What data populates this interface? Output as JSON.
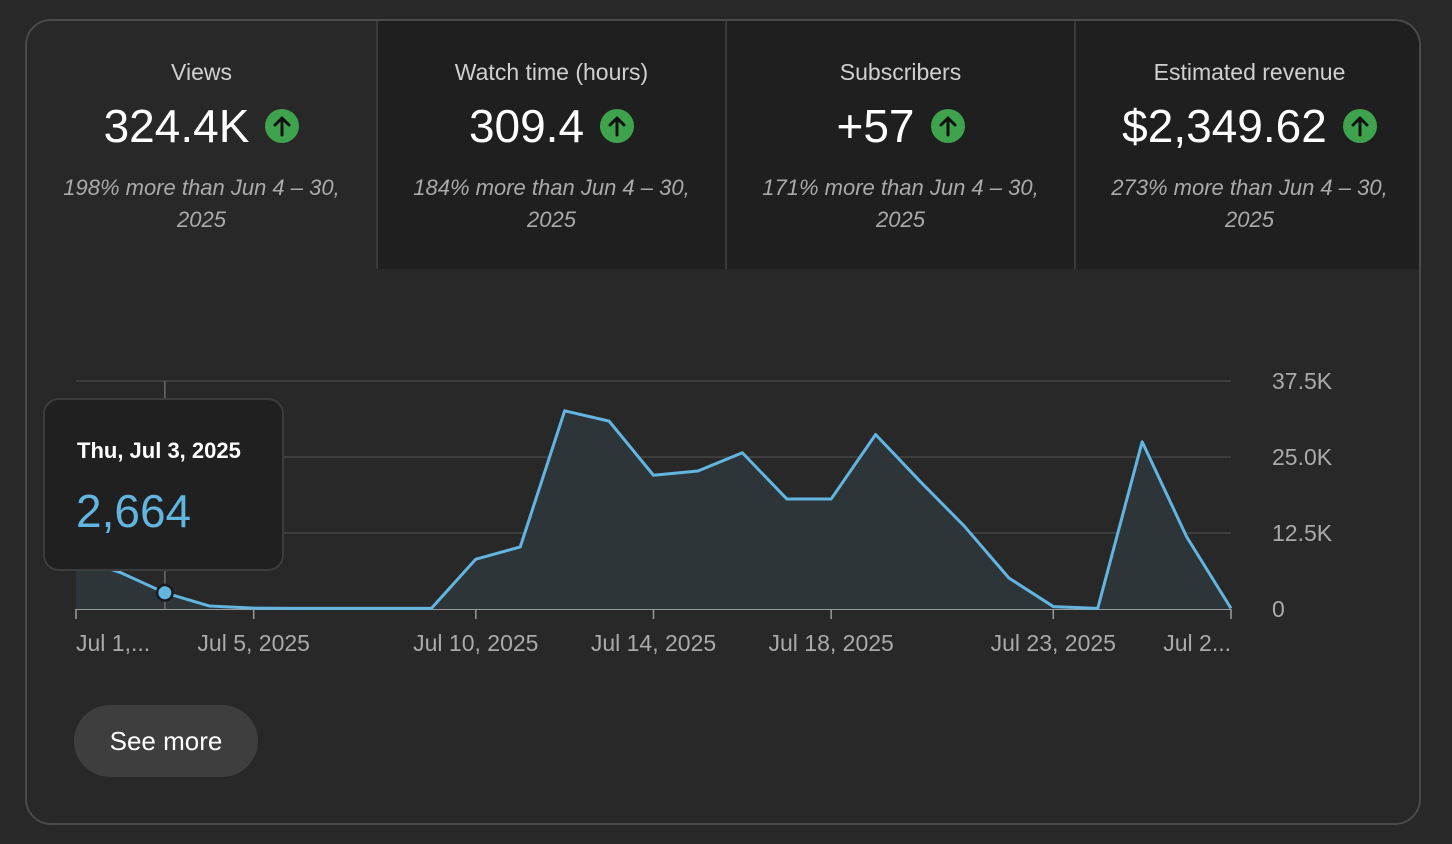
{
  "metrics": [
    {
      "label": "Views",
      "value": "324.4K",
      "trend_icon": "arrow-up-icon",
      "comparison": "198% more than Jun 4 – 30, 2025",
      "active": true
    },
    {
      "label": "Watch time (hours)",
      "value": "309.4",
      "trend_icon": "arrow-up-icon",
      "comparison": "184% more than Jun 4 – 30, 2025",
      "active": false
    },
    {
      "label": "Subscribers",
      "value": "+57",
      "trend_icon": "arrow-up-icon",
      "comparison": "171% more than Jun 4 – 30, 2025",
      "active": false
    },
    {
      "label": "Estimated revenue",
      "value": "$2,349.62",
      "trend_icon": "arrow-up-icon",
      "comparison": "273% more than Jun 4 – 30, 2025",
      "active": false
    }
  ],
  "tooltip": {
    "date": "Thu, Jul 3, 2025",
    "value": "2,664"
  },
  "see_more_label": "See more",
  "colors": {
    "line": "#62b5e0",
    "area": "#2e3539",
    "trend_up": "#3fa34d",
    "tooltip_value": "#62b5e0"
  },
  "chart_data": {
    "type": "area",
    "x": [
      "Jul 1",
      "Jul 2",
      "Jul 3",
      "Jul 4",
      "Jul 5",
      "Jul 6",
      "Jul 7",
      "Jul 8",
      "Jul 9",
      "Jul 10",
      "Jul 11",
      "Jul 12",
      "Jul 13",
      "Jul 14",
      "Jul 15",
      "Jul 16",
      "Jul 17",
      "Jul 18",
      "Jul 19",
      "Jul 20",
      "Jul 21",
      "Jul 22",
      "Jul 23",
      "Jul 24",
      "Jul 25",
      "Jul 26",
      "Jul 27"
    ],
    "series": [
      {
        "values": [
          8500,
          6000,
          2664,
          500,
          150,
          100,
          100,
          100,
          100,
          8200,
          10200,
          32600,
          30900,
          22000,
          22700,
          25700,
          18100,
          18100,
          28700,
          21000,
          13600,
          5100,
          400,
          100,
          27500,
          11900,
          100
        ]
      }
    ],
    "x_tick_labels": [
      "Jul 1,...",
      "Jul 5, 2025",
      "Jul 10, 2025",
      "Jul 14, 2025",
      "Jul 18, 2025",
      "Jul 23, 2025",
      "Jul 2..."
    ],
    "y_ticks": [
      "0",
      "12.5K",
      "25.0K",
      "37.5K"
    ],
    "ylim": [
      0,
      37500
    ],
    "grid": true,
    "highlighted_x": "Jul 3"
  }
}
